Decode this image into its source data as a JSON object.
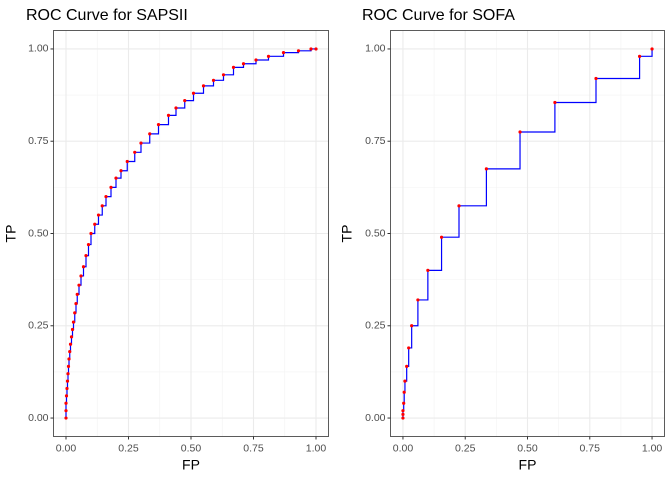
{
  "chart_data": [
    {
      "type": "step",
      "title": "ROC Curve for SAPSII",
      "x_label": "FP",
      "y_label": "TP",
      "line_color": "#0000ff",
      "point_color": "#ff0000",
      "grid": true,
      "xlim": [
        -0.05,
        1.05
      ],
      "ylim": [
        -0.05,
        1.05
      ],
      "xticks": [
        {
          "value": 0,
          "label": "0.00"
        },
        {
          "value": 0.25,
          "label": "0.25"
        },
        {
          "value": 0.5,
          "label": "0.50"
        },
        {
          "value": 0.75,
          "label": "0.75"
        },
        {
          "value": 1,
          "label": "1.00"
        }
      ],
      "yticks": [
        {
          "value": 0,
          "label": "0.00"
        },
        {
          "value": 0.25,
          "label": "0.25"
        },
        {
          "value": 0.5,
          "label": "0.50"
        },
        {
          "value": 0.75,
          "label": "0.75"
        },
        {
          "value": 1,
          "label": "1.00"
        }
      ],
      "x": [
        0,
        0,
        0,
        0.002,
        0.004,
        0.006,
        0.008,
        0.01,
        0.012,
        0.015,
        0.018,
        0.022,
        0.026,
        0.03,
        0.035,
        0.04,
        0.045,
        0.052,
        0.06,
        0.07,
        0.08,
        0.09,
        0.1,
        0.115,
        0.13,
        0.145,
        0.16,
        0.18,
        0.2,
        0.22,
        0.245,
        0.275,
        0.3,
        0.335,
        0.37,
        0.41,
        0.44,
        0.475,
        0.51,
        0.55,
        0.59,
        0.63,
        0.67,
        0.71,
        0.76,
        0.81,
        0.87,
        0.93,
        0.98,
        1
      ],
      "values": [
        0,
        0.02,
        0.04,
        0.06,
        0.08,
        0.1,
        0.12,
        0.14,
        0.16,
        0.18,
        0.2,
        0.22,
        0.24,
        0.26,
        0.285,
        0.31,
        0.335,
        0.36,
        0.385,
        0.41,
        0.44,
        0.47,
        0.5,
        0.525,
        0.55,
        0.575,
        0.6,
        0.625,
        0.65,
        0.67,
        0.695,
        0.72,
        0.745,
        0.77,
        0.795,
        0.82,
        0.84,
        0.86,
        0.88,
        0.9,
        0.915,
        0.93,
        0.95,
        0.96,
        0.97,
        0.98,
        0.99,
        0.995,
        1,
        1
      ]
    },
    {
      "type": "step",
      "title": "ROC Curve for SOFA",
      "x_label": "FP",
      "y_label": "TP",
      "line_color": "#0000ff",
      "point_color": "#ff0000",
      "grid": true,
      "xlim": [
        -0.05,
        1.05
      ],
      "ylim": [
        -0.05,
        1.05
      ],
      "xticks": [
        {
          "value": 0,
          "label": "0.00"
        },
        {
          "value": 0.25,
          "label": "0.25"
        },
        {
          "value": 0.5,
          "label": "0.50"
        },
        {
          "value": 0.75,
          "label": "0.75"
        },
        {
          "value": 1,
          "label": "1.00"
        }
      ],
      "yticks": [
        {
          "value": 0,
          "label": "0.00"
        },
        {
          "value": 0.25,
          "label": "0.25"
        },
        {
          "value": 0.5,
          "label": "0.50"
        },
        {
          "value": 0.75,
          "label": "0.75"
        },
        {
          "value": 1,
          "label": "1.00"
        }
      ],
      "x": [
        0,
        0,
        0,
        0.003,
        0.005,
        0.008,
        0.015,
        0.023,
        0.035,
        0.06,
        0.1,
        0.155,
        0.225,
        0.335,
        0.47,
        0.61,
        0.775,
        0.95,
        1
      ],
      "values": [
        0,
        0.01,
        0.02,
        0.04,
        0.07,
        0.1,
        0.14,
        0.19,
        0.25,
        0.32,
        0.4,
        0.49,
        0.575,
        0.675,
        0.775,
        0.855,
        0.92,
        0.98,
        1
      ]
    }
  ]
}
